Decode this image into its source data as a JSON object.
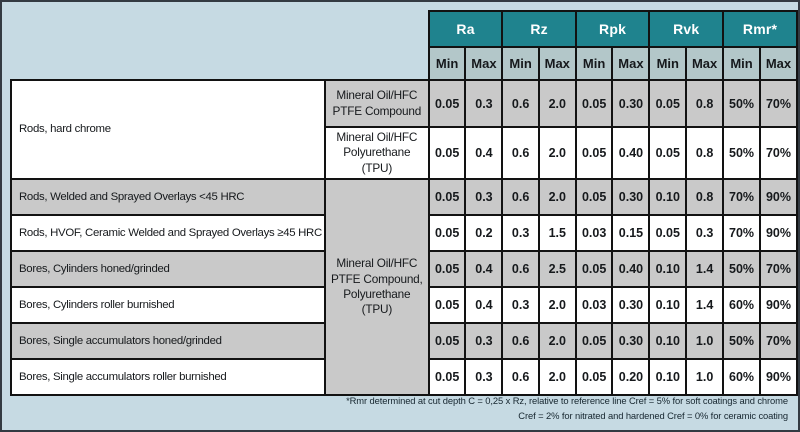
{
  "colors": {
    "header_teal": "#1f838e",
    "subheader": "#b3c7c9",
    "row_gray": "#c9c9c9",
    "row_white": "#ffffff",
    "page_background": "#c6dae3",
    "grid_border": "#121212"
  },
  "header": {
    "groups": [
      "Ra",
      "Rz",
      "Rpk",
      "Rvk",
      "Rmr*"
    ],
    "min_label": "Min",
    "max_label": "Max"
  },
  "merged_material": "Mineral Oil/HFC PTFE Compound, Polyurethane (TPU)",
  "rows": [
    {
      "surface": "Rods, hard chrome",
      "material": "Mineral Oil/HFC PTFE Compound",
      "values": [
        "0.05",
        "0.3",
        "0.6",
        "2.0",
        "0.05",
        "0.30",
        "0.05",
        "0.8",
        "50%",
        "70%"
      ]
    },
    {
      "material": "Mineral Oil/HFC Polyurethane (TPU)",
      "values": [
        "0.05",
        "0.4",
        "0.6",
        "2.0",
        "0.05",
        "0.40",
        "0.05",
        "0.8",
        "50%",
        "70%"
      ]
    },
    {
      "surface": "Rods, Welded and Sprayed Overlays <45 HRC",
      "values": [
        "0.05",
        "0.3",
        "0.6",
        "2.0",
        "0.05",
        "0.30",
        "0.10",
        "0.8",
        "70%",
        "90%"
      ]
    },
    {
      "surface": "Rods, HVOF, Ceramic Welded and Sprayed Overlays ≥45 HRC",
      "values": [
        "0.05",
        "0.2",
        "0.3",
        "1.5",
        "0.03",
        "0.15",
        "0.05",
        "0.3",
        "70%",
        "90%"
      ]
    },
    {
      "surface": "Bores, Cylinders honed/grinded",
      "values": [
        "0.05",
        "0.4",
        "0.6",
        "2.5",
        "0.05",
        "0.40",
        "0.10",
        "1.4",
        "50%",
        "70%"
      ]
    },
    {
      "surface": "Bores, Cylinders roller burnished",
      "values": [
        "0.05",
        "0.4",
        "0.3",
        "2.0",
        "0.03",
        "0.30",
        "0.10",
        "1.4",
        "60%",
        "90%"
      ]
    },
    {
      "surface": "Bores, Single accumulators honed/grinded",
      "values": [
        "0.05",
        "0.3",
        "0.6",
        "2.0",
        "0.05",
        "0.30",
        "0.10",
        "1.0",
        "50%",
        "70%"
      ]
    },
    {
      "surface": "Bores, Single accumulators roller burnished",
      "values": [
        "0.05",
        "0.3",
        "0.6",
        "2.0",
        "0.05",
        "0.20",
        "0.10",
        "1.0",
        "60%",
        "90%"
      ]
    }
  ],
  "footnote": {
    "line1": "*Rmr determined at cut depth C = 0,25 x Rz, relative to reference line Cref = 5% for soft coatings and chrome",
    "line2": "Cref = 2% for nitrated and hardened Cref = 0% for ceramic coating"
  }
}
